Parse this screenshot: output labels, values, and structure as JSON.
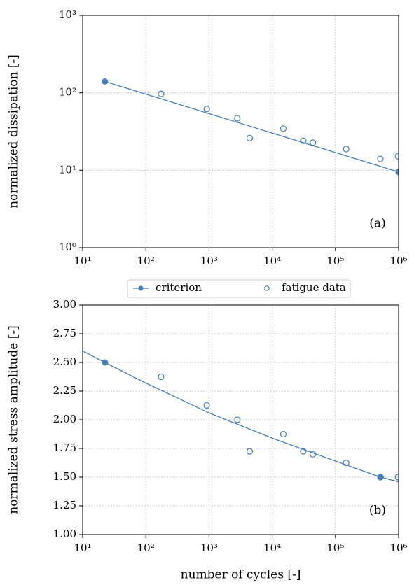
{
  "chart_data": [
    {
      "type": "line",
      "xscale": "log",
      "yscale": "log",
      "grid": true,
      "ylabel": "normalized dissipation [-]",
      "annotation": "(a)",
      "xlim": [
        10,
        1000000
      ],
      "ylim": [
        1,
        1000
      ],
      "xticks": [
        {
          "value": 10,
          "label": "10¹"
        },
        {
          "value": 100,
          "label": "10²"
        },
        {
          "value": 1000,
          "label": "10³"
        },
        {
          "value": 10000,
          "label": "10⁴"
        },
        {
          "value": 100000,
          "label": "10⁵"
        },
        {
          "value": 1000000,
          "label": "10⁶"
        }
      ],
      "yticks": [
        {
          "value": 1,
          "label": "10⁰"
        },
        {
          "value": 10,
          "label": "10¹"
        },
        {
          "value": 100,
          "label": "10²"
        },
        {
          "value": 1000,
          "label": "10³"
        }
      ],
      "series": [
        {
          "name": "criterion",
          "color": "#4a7fb5",
          "marker": "filled",
          "x": [
            22.5,
            1000000
          ],
          "values": [
            140,
            9.5
          ],
          "marker_x": [
            22.5,
            1000000
          ],
          "marker_values": [
            140,
            9.5
          ]
        },
        {
          "name": "fatigue data",
          "color": "#4a7fb5",
          "marker": "open",
          "x": [
            174,
            920,
            2800,
            4400,
            15000,
            31000,
            44000,
            148000,
            515000,
            980000
          ],
          "values": [
            97,
            62,
            47,
            26,
            34.5,
            24,
            22.8,
            18.8,
            14,
            15.2
          ]
        }
      ]
    },
    {
      "type": "line",
      "xscale": "log",
      "yscale": "linear",
      "grid": true,
      "ylabel": "normalized stress amplitude [-]",
      "xlabel": "number of cycles [-]",
      "annotation": "(b)",
      "xlim": [
        10,
        1000000
      ],
      "ylim": [
        1,
        3
      ],
      "xticks": [
        {
          "value": 10,
          "label": "10¹"
        },
        {
          "value": 100,
          "label": "10²"
        },
        {
          "value": 1000,
          "label": "10³"
        },
        {
          "value": 10000,
          "label": "10⁴"
        },
        {
          "value": 100000,
          "label": "10⁵"
        },
        {
          "value": 1000000,
          "label": "10⁶"
        }
      ],
      "yticks": [
        {
          "value": 1,
          "label": "1.00"
        },
        {
          "value": 1.25,
          "label": "1.25"
        },
        {
          "value": 1.5,
          "label": "1.50"
        },
        {
          "value": 1.75,
          "label": "1.75"
        },
        {
          "value": 2,
          "label": "2.00"
        },
        {
          "value": 2.25,
          "label": "2.25"
        },
        {
          "value": 2.5,
          "label": "2.50"
        },
        {
          "value": 2.75,
          "label": "2.75"
        },
        {
          "value": 3,
          "label": "3.00"
        }
      ],
      "series": [
        {
          "color": "#4a7fb5",
          "marker": "filled",
          "x": [
            10,
            22.5,
            100,
            1000,
            10000,
            100000,
            520000,
            1000000
          ],
          "values": [
            2.6,
            2.5,
            2.32,
            2.06,
            1.84,
            1.64,
            1.5,
            1.46
          ],
          "marker_x": [
            22.5,
            520000
          ],
          "marker_values": [
            2.5,
            1.5
          ]
        },
        {
          "color": "#4a7fb5",
          "marker": "open",
          "x": [
            174,
            920,
            2800,
            4400,
            15000,
            31000,
            44000,
            148000,
            515000,
            980000
          ],
          "values": [
            2.375,
            2.125,
            2.0,
            1.725,
            1.875,
            1.725,
            1.7,
            1.625,
            1.5,
            1.5
          ]
        }
      ]
    }
  ]
}
